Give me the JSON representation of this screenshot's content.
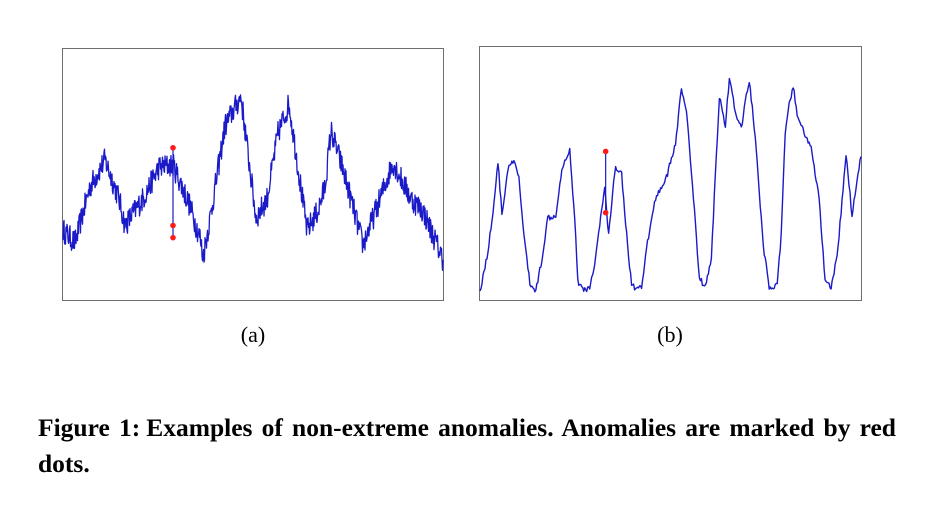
{
  "figure": {
    "caption_label": "Figure 1:",
    "caption_text": "Examples of non-extreme anomalies. Anomalies are marked by red dots.",
    "line_color": "#1a1ac8",
    "anomaly_color": "#ff1a1a"
  },
  "chart_data": [
    {
      "type": "line",
      "panel_label": "(a)",
      "title": "",
      "xlabel": "",
      "ylabel": "",
      "grid": false,
      "axes_ticks": false,
      "ylim": [
        0,
        1
      ],
      "x": [
        0,
        12,
        27,
        42,
        56,
        62,
        70,
        80,
        96,
        110,
        126,
        137,
        140,
        148,
        162,
        178,
        193,
        204,
        215,
        226,
        244,
        255,
        262,
        268,
        280,
        300,
        310,
        330,
        348,
        360,
        380
      ],
      "series": [
        {
          "values": [
            0.27,
            0.22,
            0.45,
            0.56,
            0.4,
            0.29,
            0.34,
            0.4,
            0.53,
            0.54,
            0.38,
            0.24,
            0.16,
            0.34,
            0.7,
            0.82,
            0.32,
            0.4,
            0.67,
            0.79,
            0.27,
            0.35,
            0.45,
            0.68,
            0.52,
            0.21,
            0.32,
            0.55,
            0.4,
            0.35,
            0.15
          ],
          "noise": 0.05
        }
      ],
      "anomalies": [
        {
          "x": 110,
          "y": 0.61
        },
        {
          "x": 110,
          "y": 0.29
        },
        {
          "x": 110,
          "y": 0.24
        }
      ],
      "anomaly_segment": {
        "x": 110,
        "y_from": 0.61,
        "y_to": 0.24
      }
    },
    {
      "type": "line",
      "panel_label": "(b)",
      "title": "",
      "xlabel": "",
      "ylabel": "",
      "grid": false,
      "axes_ticks": false,
      "ylim": [
        0,
        1
      ],
      "x": [
        0,
        8,
        14,
        18,
        22,
        28,
        34,
        39,
        44,
        50,
        56,
        62,
        68,
        76,
        82,
        90,
        96,
        98,
        102,
        110,
        116,
        121,
        125,
        129,
        133,
        136,
        142,
        148,
        152,
        156,
        162,
        168,
        176,
        184,
        188,
        196,
        202,
        208,
        214,
        220,
        226,
        232,
        236,
        240,
        246,
        250,
        256,
        262,
        266,
        270,
        276,
        284,
        290,
        298,
        302,
        306,
        310,
        314,
        318,
        324,
        332,
        340,
        346,
        352,
        358,
        362,
        367,
        373,
        382
      ],
      "series": [
        {
          "values": [
            0.02,
            0.18,
            0.38,
            0.55,
            0.33,
            0.52,
            0.55,
            0.48,
            0.25,
            0.05,
            0.02,
            0.15,
            0.32,
            0.33,
            0.52,
            0.6,
            0.25,
            0.06,
            0.03,
            0.03,
            0.16,
            0.32,
            0.44,
            0.25,
            0.42,
            0.53,
            0.5,
            0.2,
            0.05,
            0.03,
            0.03,
            0.22,
            0.4,
            0.46,
            0.5,
            0.62,
            0.85,
            0.72,
            0.4,
            0.07,
            0.04,
            0.15,
            0.5,
            0.81,
            0.7,
            0.89,
            0.75,
            0.68,
            0.8,
            0.88,
            0.65,
            0.2,
            0.04,
            0.04,
            0.25,
            0.66,
            0.78,
            0.86,
            0.73,
            0.68,
            0.6,
            0.4,
            0.06,
            0.03,
            0.16,
            0.34,
            0.58,
            0.33,
            0.58
          ],
          "noise": 0.012
        }
      ],
      "anomalies": [
        {
          "x": 126,
          "y": 0.59
        },
        {
          "x": 126,
          "y": 0.34
        }
      ],
      "anomaly_segment": {
        "x": 126,
        "y_from": 0.59,
        "y_to": 0.34
      }
    }
  ]
}
